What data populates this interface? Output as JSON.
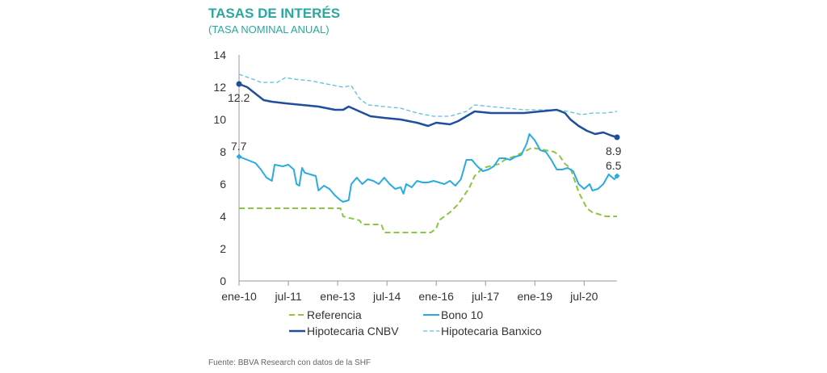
{
  "chart_data": {
    "type": "line",
    "title": "TASAS DE INTERÉS",
    "subtitle": "(TASA NOMINAL ANUAL)",
    "source": "Fuente: BBVA Research con datos de la SHF",
    "x_tick_labels": [
      "ene-10",
      "jul-11",
      "ene-13",
      "jul-14",
      "ene-16",
      "jul-17",
      "ene-19",
      "jul-20"
    ],
    "x_range": [
      "2010-01",
      "2021-07"
    ],
    "ylim": [
      0,
      14
    ],
    "y_ticks": [
      "0",
      "2",
      "4",
      "6",
      "8",
      "10",
      "12",
      "14"
    ],
    "grid": false,
    "legend_position": "bottom",
    "colors": {
      "title": "#2aa8a0",
      "axis": "#999999",
      "text": "#333333"
    },
    "series": [
      {
        "name": "Referencia",
        "color": "#8dc63f",
        "dash": "dashed",
        "points": [
          [
            "2010-01",
            4.5
          ],
          [
            "2013-02",
            4.5
          ],
          [
            "2013-03",
            4.0
          ],
          [
            "2013-09",
            3.75
          ],
          [
            "2013-10",
            3.5
          ],
          [
            "2014-05",
            3.5
          ],
          [
            "2014-06",
            3.0
          ],
          [
            "2015-11",
            3.0
          ],
          [
            "2016-01",
            3.25
          ],
          [
            "2016-02",
            3.75
          ],
          [
            "2016-06",
            4.25
          ],
          [
            "2016-09",
            4.75
          ],
          [
            "2016-11",
            5.25
          ],
          [
            "2017-01",
            5.75
          ],
          [
            "2017-03",
            6.5
          ],
          [
            "2017-06",
            7.0
          ],
          [
            "2017-12",
            7.25
          ],
          [
            "2018-02",
            7.5
          ],
          [
            "2018-06",
            7.75
          ],
          [
            "2018-12",
            8.25
          ],
          [
            "2019-08",
            8.0
          ],
          [
            "2019-10",
            7.75
          ],
          [
            "2019-12",
            7.25
          ],
          [
            "2020-02",
            7.0
          ],
          [
            "2020-03",
            6.5
          ],
          [
            "2020-05",
            5.5
          ],
          [
            "2020-08",
            4.5
          ],
          [
            "2020-10",
            4.25
          ],
          [
            "2021-03",
            4.0
          ],
          [
            "2021-07",
            4.0
          ]
        ]
      },
      {
        "name": "Bono 10",
        "color": "#29abe2",
        "dash": "solid",
        "end_label": "6.5",
        "start_label": "7.7",
        "points": [
          [
            "2010-01",
            7.7
          ],
          [
            "2010-04",
            7.5
          ],
          [
            "2010-07",
            7.3
          ],
          [
            "2010-09",
            6.9
          ],
          [
            "2010-11",
            6.4
          ],
          [
            "2011-01",
            6.2
          ],
          [
            "2011-02",
            7.2
          ],
          [
            "2011-05",
            7.1
          ],
          [
            "2011-07",
            7.2
          ],
          [
            "2011-09",
            6.9
          ],
          [
            "2011-10",
            6.0
          ],
          [
            "2011-11",
            5.9
          ],
          [
            "2011-12",
            7.0
          ],
          [
            "2012-01",
            6.7
          ],
          [
            "2012-03",
            6.6
          ],
          [
            "2012-05",
            6.5
          ],
          [
            "2012-06",
            5.6
          ],
          [
            "2012-08",
            5.9
          ],
          [
            "2012-10",
            5.7
          ],
          [
            "2012-12",
            5.3
          ],
          [
            "2013-02",
            5.0
          ],
          [
            "2013-03",
            4.9
          ],
          [
            "2013-05",
            5.0
          ],
          [
            "2013-06",
            6.0
          ],
          [
            "2013-08",
            6.4
          ],
          [
            "2013-10",
            6.0
          ],
          [
            "2013-12",
            6.3
          ],
          [
            "2014-02",
            6.2
          ],
          [
            "2014-04",
            6.0
          ],
          [
            "2014-06",
            6.4
          ],
          [
            "2014-08",
            6.0
          ],
          [
            "2014-10",
            5.7
          ],
          [
            "2014-12",
            5.8
          ],
          [
            "2015-01",
            5.4
          ],
          [
            "2015-02",
            6.0
          ],
          [
            "2015-04",
            5.8
          ],
          [
            "2015-06",
            6.2
          ],
          [
            "2015-08",
            6.1
          ],
          [
            "2015-10",
            6.1
          ],
          [
            "2015-12",
            6.2
          ],
          [
            "2016-02",
            6.1
          ],
          [
            "2016-04",
            6.0
          ],
          [
            "2016-06",
            6.2
          ],
          [
            "2016-08",
            5.9
          ],
          [
            "2016-10",
            6.3
          ],
          [
            "2016-12",
            7.5
          ],
          [
            "2017-02",
            7.5
          ],
          [
            "2017-04",
            7.1
          ],
          [
            "2017-06",
            6.8
          ],
          [
            "2017-08",
            6.9
          ],
          [
            "2017-10",
            7.1
          ],
          [
            "2017-12",
            7.6
          ],
          [
            "2018-02",
            7.6
          ],
          [
            "2018-04",
            7.5
          ],
          [
            "2018-06",
            7.7
          ],
          [
            "2018-08",
            7.8
          ],
          [
            "2018-10",
            8.5
          ],
          [
            "2018-11",
            9.1
          ],
          [
            "2019-01",
            8.7
          ],
          [
            "2019-03",
            8.1
          ],
          [
            "2019-05",
            8.0
          ],
          [
            "2019-07",
            7.5
          ],
          [
            "2019-09",
            6.9
          ],
          [
            "2019-11",
            6.9
          ],
          [
            "2020-01",
            7.0
          ],
          [
            "2020-03",
            6.8
          ],
          [
            "2020-05",
            6.0
          ],
          [
            "2020-07",
            5.7
          ],
          [
            "2020-09",
            6.0
          ],
          [
            "2020-10",
            5.6
          ],
          [
            "2020-12",
            5.7
          ],
          [
            "2021-02",
            6.0
          ],
          [
            "2021-04",
            6.6
          ],
          [
            "2021-06",
            6.3
          ],
          [
            "2021-07",
            6.5
          ]
        ]
      },
      {
        "name": "Hipotecaria CNBV",
        "color": "#1f4e9c",
        "dash": "solid",
        "end_label": "8.9",
        "start_label": "12.2",
        "points": [
          [
            "2010-01",
            12.2
          ],
          [
            "2010-04",
            12.0
          ],
          [
            "2010-07",
            11.6
          ],
          [
            "2010-10",
            11.2
          ],
          [
            "2011-01",
            11.1
          ],
          [
            "2011-06",
            11.0
          ],
          [
            "2011-12",
            10.9
          ],
          [
            "2012-06",
            10.8
          ],
          [
            "2012-12",
            10.6
          ],
          [
            "2013-03",
            10.6
          ],
          [
            "2013-05",
            10.8
          ],
          [
            "2013-09",
            10.5
          ],
          [
            "2014-01",
            10.2
          ],
          [
            "2014-06",
            10.1
          ],
          [
            "2014-12",
            10.0
          ],
          [
            "2015-06",
            9.8
          ],
          [
            "2015-10",
            9.6
          ],
          [
            "2016-01",
            9.8
          ],
          [
            "2016-06",
            9.7
          ],
          [
            "2016-09",
            9.9
          ],
          [
            "2016-12",
            10.2
          ],
          [
            "2017-03",
            10.5
          ],
          [
            "2017-09",
            10.4
          ],
          [
            "2018-03",
            10.4
          ],
          [
            "2018-09",
            10.4
          ],
          [
            "2019-03",
            10.5
          ],
          [
            "2019-09",
            10.6
          ],
          [
            "2019-12",
            10.4
          ],
          [
            "2020-02",
            10.0
          ],
          [
            "2020-05",
            9.6
          ],
          [
            "2020-08",
            9.3
          ],
          [
            "2020-11",
            9.1
          ],
          [
            "2021-02",
            9.2
          ],
          [
            "2021-05",
            9.0
          ],
          [
            "2021-07",
            8.9
          ]
        ]
      },
      {
        "name": "Hipotecaria Banxico",
        "color": "#5bc0de",
        "dash": "thin-dashed",
        "points": [
          [
            "2010-01",
            12.8
          ],
          [
            "2010-06",
            12.5
          ],
          [
            "2010-09",
            12.3
          ],
          [
            "2011-03",
            12.3
          ],
          [
            "2011-06",
            12.6
          ],
          [
            "2011-09",
            12.5
          ],
          [
            "2012-03",
            12.4
          ],
          [
            "2012-09",
            12.2
          ],
          [
            "2013-03",
            12.0
          ],
          [
            "2013-06",
            12.1
          ],
          [
            "2013-09",
            11.3
          ],
          [
            "2013-12",
            10.9
          ],
          [
            "2014-06",
            10.8
          ],
          [
            "2014-12",
            10.7
          ],
          [
            "2015-06",
            10.4
          ],
          [
            "2015-12",
            10.2
          ],
          [
            "2016-06",
            10.2
          ],
          [
            "2016-12",
            10.5
          ],
          [
            "2017-03",
            10.9
          ],
          [
            "2017-09",
            10.8
          ],
          [
            "2018-03",
            10.7
          ],
          [
            "2018-09",
            10.6
          ],
          [
            "2019-03",
            10.6
          ],
          [
            "2019-09",
            10.6
          ],
          [
            "2020-01",
            10.5
          ],
          [
            "2020-06",
            10.3
          ],
          [
            "2020-10",
            10.4
          ],
          [
            "2021-03",
            10.4
          ],
          [
            "2021-07",
            10.5
          ]
        ]
      }
    ]
  }
}
